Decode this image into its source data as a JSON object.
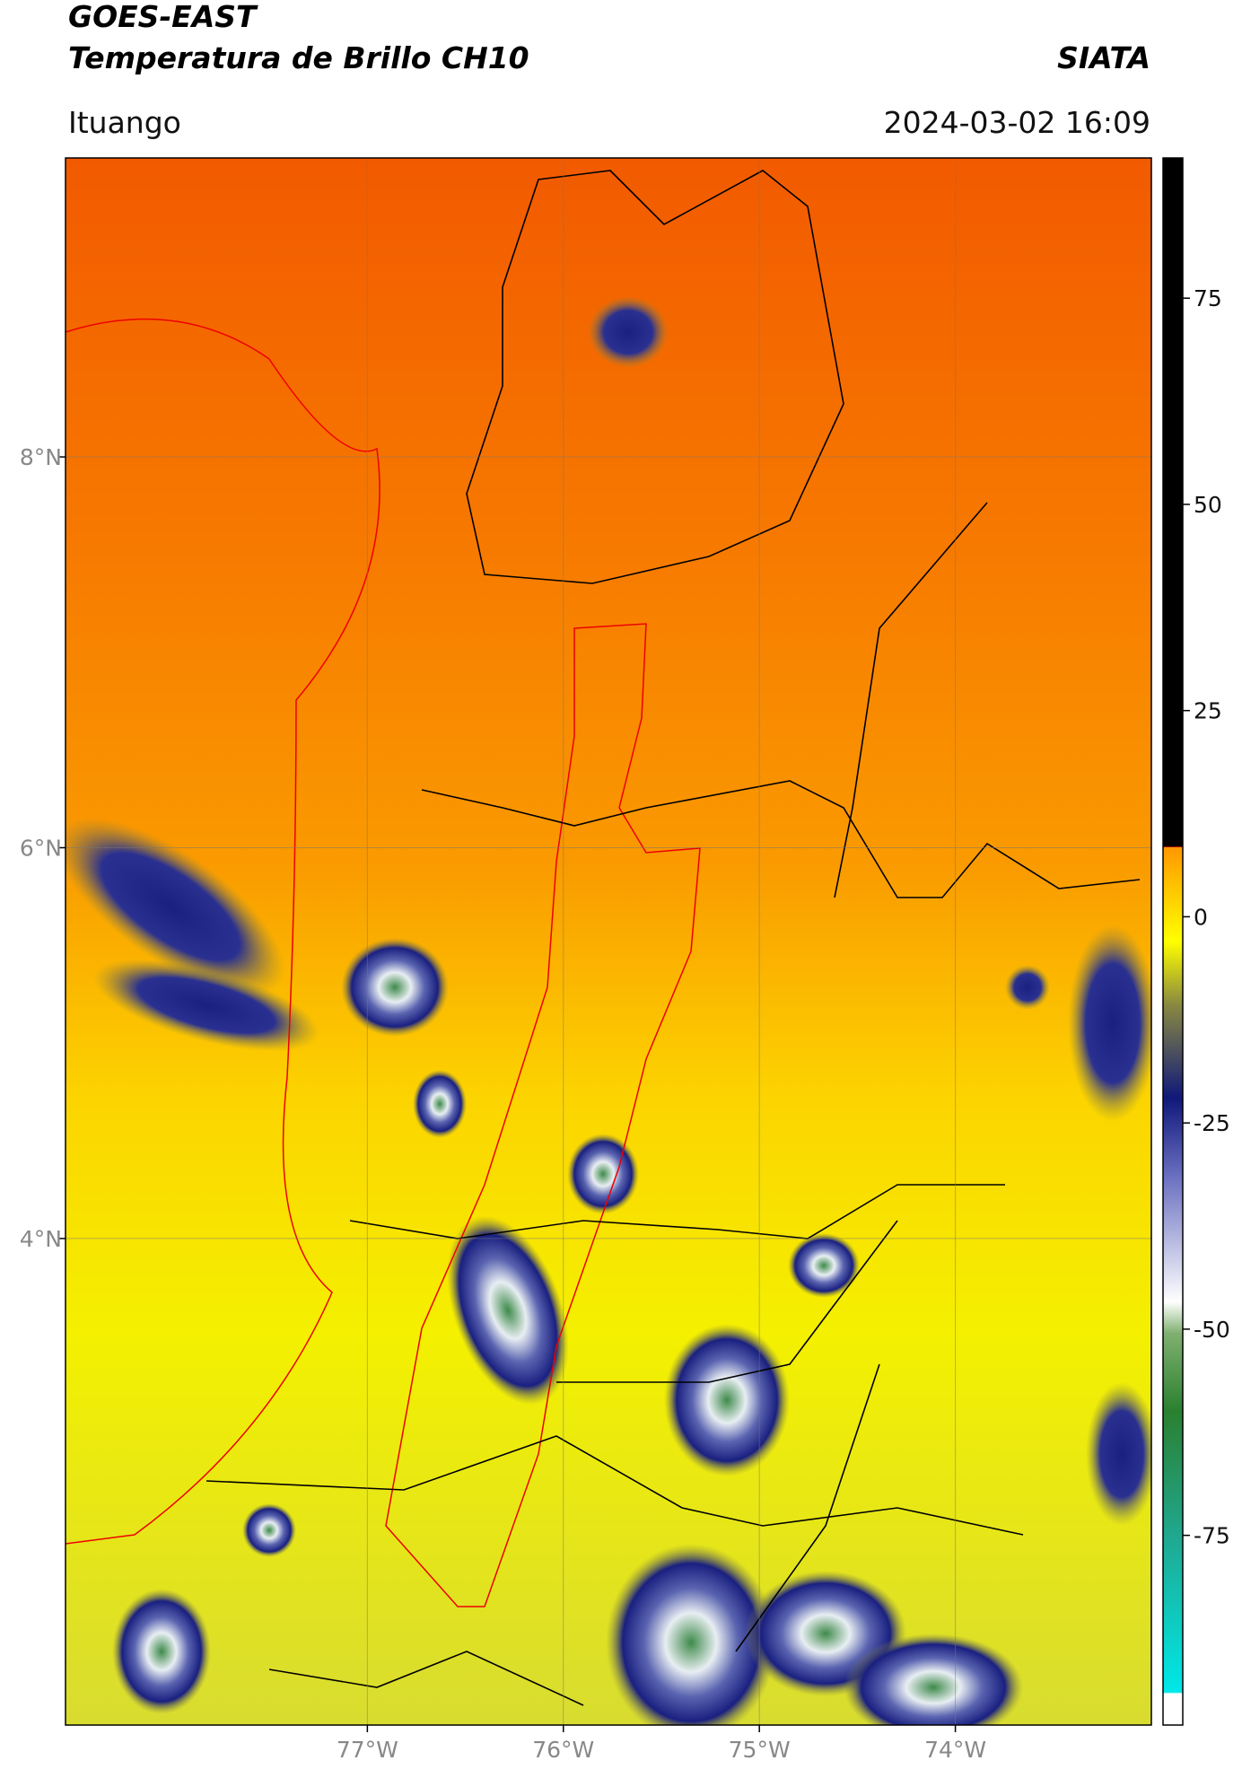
{
  "header": {
    "title": "GOES-EAST",
    "subtitle": "Temperatura de Brillo CH10",
    "brand": "SIATA",
    "region": "Ituango",
    "datetime": "2024-03-02 16:09"
  },
  "map": {
    "xlim": [
      -78.54,
      -73.0
    ],
    "ylim": [
      1.51,
      9.53
    ],
    "xticks": [
      {
        "value": -77,
        "label": "77°W"
      },
      {
        "value": -76,
        "label": "76°W"
      },
      {
        "value": -75,
        "label": "75°W"
      },
      {
        "value": -74,
        "label": "74°W"
      }
    ],
    "yticks": [
      {
        "value": 8,
        "label": "8°N"
      },
      {
        "value": 6,
        "label": "6°N"
      },
      {
        "value": 4,
        "label": "4°N"
      }
    ],
    "grid": true
  },
  "colorbar": {
    "lim": [
      -98,
      92
    ],
    "ticks": [
      75,
      50,
      25,
      0,
      -25,
      -50,
      -75
    ]
  }
}
